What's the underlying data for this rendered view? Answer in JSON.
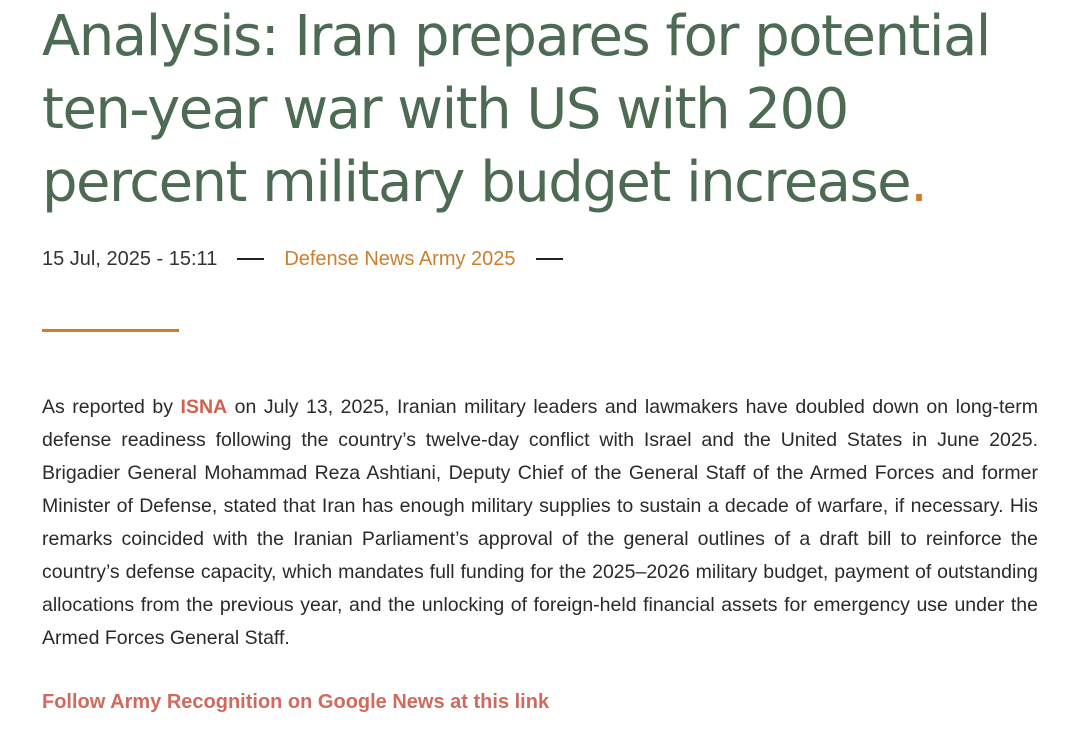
{
  "article": {
    "headline": "Analysis: Iran prepares for potential ten-year war with US with 200 percent military budget increase",
    "headline_end": ".",
    "meta": {
      "date": "15 Jul, 2025 - 15:11",
      "category": "Defense News Army 2025"
    },
    "body": {
      "intro": "As reported by ",
      "source_link": "ISNA",
      "text": " on July 13, 2025, Iranian military leaders and lawmakers have doubled down on long-term defense readiness following the country’s twelve-day conflict with Israel and the United States in June 2025. Brigadier General Mohammad Reza Ashtiani, Deputy Chief of the General Staff of the Armed Forces and former Minister of Defense, stated that Iran has enough military supplies to sustain a decade of warfare, if necessary. His remarks coincided with the Iranian Parliament’s approval of the general outlines of a draft bill to reinforce the country’s defense capacity, which mandates full funding for the 2025–2026 military budget, payment of outstanding allocations from the previous year, and the unlocking of foreign-held financial assets for emergency use under the Armed Forces General Staff."
    },
    "follow_link": "Follow Army Recognition on Google News at this link"
  },
  "colors": {
    "headline": "#4d6b53",
    "accent": "#d07a2a",
    "link": "#d2604e",
    "body_text": "#2a2a2a"
  }
}
